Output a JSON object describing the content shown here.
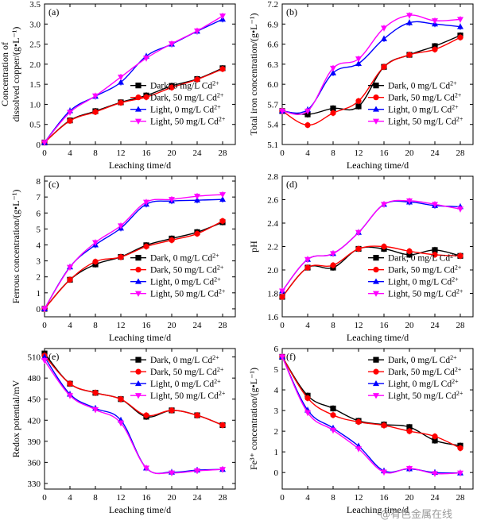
{
  "colors": {
    "dark_0": "#000000",
    "dark_50": "#ff0000",
    "light_0": "#0000ff",
    "light_50": "#ff00ff"
  },
  "watermark": "@有色金属在线",
  "series_styles": [
    {
      "name": "Dark, 0 mg/L Cd",
      "sup": "2+",
      "color": "#000000",
      "marker": "square"
    },
    {
      "name": "Dark, 50 mg/L Cd",
      "sup": "2+",
      "color": "#ff0000",
      "marker": "circle"
    },
    {
      "name": "Light, 0 mg/L Cd",
      "sup": "2+",
      "color": "#0000ff",
      "marker": "triangle-up"
    },
    {
      "name": "Light, 50 mg/L Cd",
      "sup": "2+",
      "color": "#ff00ff",
      "marker": "triangle-down"
    }
  ],
  "chart_data": [
    {
      "panel": "(a)",
      "type": "line",
      "ylabel_lines": [
        "Concentration of",
        "dissolved copper/(g•L⁻¹)"
      ],
      "xlabel": "Leaching time/d",
      "xlim": [
        0,
        30
      ],
      "ylim": [
        0,
        3.5
      ],
      "xticks": [
        0,
        4,
        8,
        12,
        16,
        20,
        24,
        28
      ],
      "yticks": [
        "0",
        "0.5",
        "1.0",
        "1.5",
        "2.0",
        "2.5",
        "3.0",
        "3.5"
      ],
      "x": [
        0,
        4,
        8,
        12,
        16,
        20,
        24,
        28
      ],
      "series": [
        {
          "name": "Dark, 0 mg/L Cd2+",
          "values": [
            0.05,
            0.6,
            0.83,
            1.05,
            1.22,
            1.46,
            1.63,
            1.9
          ]
        },
        {
          "name": "Dark, 50 mg/L Cd2+",
          "values": [
            0.05,
            0.59,
            0.81,
            1.04,
            1.18,
            1.42,
            1.62,
            1.88
          ]
        },
        {
          "name": "Light, 0 mg/L Cd2+",
          "values": [
            0.05,
            0.84,
            1.2,
            1.55,
            2.2,
            2.5,
            2.82,
            3.12
          ]
        },
        {
          "name": "Light, 50 mg/L Cd2+",
          "values": [
            0.05,
            0.8,
            1.21,
            1.68,
            2.15,
            2.51,
            2.83,
            3.2
          ]
        }
      ],
      "legend": "bottom-right"
    },
    {
      "panel": "(b)",
      "type": "line",
      "ylabel_lines": [
        "Total iron concentration/(g•L⁻¹)"
      ],
      "xlabel": "Leaching time/d",
      "xlim": [
        0,
        30
      ],
      "ylim": [
        5.1,
        7.2
      ],
      "xticks": [
        0,
        4,
        8,
        12,
        16,
        20,
        24,
        28
      ],
      "yticks": [
        "5.1",
        "5.4",
        "5.7",
        "6.0",
        "6.3",
        "6.6",
        "6.9",
        "7.2"
      ],
      "x": [
        0,
        4,
        8,
        12,
        16,
        20,
        24,
        28
      ],
      "series": [
        {
          "name": "Dark, 0 mg/L Cd2+",
          "values": [
            5.6,
            5.55,
            5.64,
            5.67,
            6.26,
            6.44,
            6.57,
            6.73
          ]
        },
        {
          "name": "Dark, 50 mg/L Cd2+",
          "values": [
            5.6,
            5.39,
            5.57,
            5.75,
            6.26,
            6.44,
            6.52,
            6.7
          ]
        },
        {
          "name": "Light, 0 mg/L Cd2+",
          "values": [
            5.6,
            5.62,
            6.17,
            6.31,
            6.68,
            6.92,
            6.9,
            6.86
          ]
        },
        {
          "name": "Light, 50 mg/L Cd2+",
          "values": [
            5.6,
            5.6,
            6.24,
            6.38,
            6.84,
            7.03,
            6.95,
            6.97
          ]
        }
      ],
      "legend": "bottom-right"
    },
    {
      "panel": "(c)",
      "type": "line",
      "ylabel_lines": [
        "Ferrous concentration/(g•L⁻¹)"
      ],
      "xlabel": "Leaching time/d",
      "xlim": [
        0,
        30
      ],
      "ylim": [
        -0.5,
        8.3
      ],
      "xticks": [
        0,
        4,
        8,
        12,
        16,
        20,
        24,
        28
      ],
      "yticks": [
        "0",
        "1",
        "2",
        "3",
        "4",
        "5",
        "6",
        "7",
        "8"
      ],
      "x": [
        0,
        4,
        8,
        12,
        16,
        20,
        24,
        28
      ],
      "series": [
        {
          "name": "Dark, 0 mg/L Cd2+",
          "values": [
            0.0,
            1.82,
            2.78,
            3.25,
            3.98,
            4.4,
            4.8,
            5.42
          ]
        },
        {
          "name": "Dark, 50 mg/L Cd2+",
          "values": [
            0.0,
            1.82,
            2.95,
            3.24,
            3.9,
            4.3,
            4.7,
            5.5
          ]
        },
        {
          "name": "Light, 0 mg/L Cd2+",
          "values": [
            0.0,
            2.62,
            4.0,
            5.05,
            6.55,
            6.75,
            6.8,
            6.85
          ]
        },
        {
          "name": "Light, 50 mg/L Cd2+",
          "values": [
            0.0,
            2.6,
            4.15,
            5.2,
            6.68,
            6.85,
            7.05,
            7.15
          ]
        }
      ],
      "legend": "bottom-right"
    },
    {
      "panel": "(d)",
      "type": "line",
      "ylabel_lines": [
        "pH"
      ],
      "xlabel": "Leaching time/d",
      "xlim": [
        0,
        30
      ],
      "ylim": [
        1.6,
        2.8
      ],
      "xticks": [
        0,
        4,
        8,
        12,
        16,
        20,
        24,
        28
      ],
      "yticks": [
        "1.6",
        "1.8",
        "2.0",
        "2.2",
        "2.4",
        "2.6",
        "2.8"
      ],
      "x": [
        0,
        4,
        8,
        12,
        16,
        20,
        24,
        28
      ],
      "series": [
        {
          "name": "Dark, 0 mg/L Cd2+",
          "values": [
            1.77,
            2.02,
            2.02,
            2.18,
            2.18,
            2.13,
            2.17,
            2.12
          ]
        },
        {
          "name": "Dark, 50 mg/L Cd2+",
          "values": [
            1.77,
            2.02,
            2.04,
            2.18,
            2.2,
            2.16,
            2.13,
            2.12
          ]
        },
        {
          "name": "Light, 0 mg/L Cd2+",
          "values": [
            1.82,
            2.09,
            2.14,
            2.32,
            2.56,
            2.58,
            2.55,
            2.54
          ]
        },
        {
          "name": "Light, 50 mg/L Cd2+",
          "values": [
            1.82,
            2.09,
            2.14,
            2.32,
            2.56,
            2.59,
            2.56,
            2.52
          ]
        }
      ],
      "legend": "bottom-right"
    },
    {
      "panel": "(e)",
      "type": "line",
      "ylabel_lines": [
        "Redox potential/mV"
      ],
      "xlabel": "Leaching time/d",
      "xlim": [
        0,
        30
      ],
      "ylim": [
        322,
        522
      ],
      "xticks": [
        0,
        4,
        8,
        12,
        16,
        20,
        24,
        28
      ],
      "yticks": [
        "330",
        "360",
        "390",
        "420",
        "450",
        "480",
        "510"
      ],
      "x": [
        0,
        4,
        8,
        12,
        16,
        20,
        24,
        28
      ],
      "series": [
        {
          "name": "Dark, 0 mg/L Cd2+",
          "values": [
            515,
            472,
            459,
            450,
            425,
            434,
            427,
            413
          ]
        },
        {
          "name": "Dark, 50 mg/L Cd2+",
          "values": [
            512,
            472,
            459,
            450,
            427,
            434,
            427,
            413
          ]
        },
        {
          "name": "Light, 0 mg/L Cd2+",
          "values": [
            510,
            457,
            437,
            420,
            352,
            346,
            349,
            350
          ]
        },
        {
          "name": "Light, 50 mg/L Cd2+",
          "values": [
            505,
            455,
            435,
            416,
            352,
            345,
            348,
            350
          ]
        }
      ],
      "legend": "top-right"
    },
    {
      "panel": "(f)",
      "type": "line",
      "ylabel_lines": [
        "Fe³⁺ concentration/(g•L⁻¹)"
      ],
      "xlabel": "Leaching time/d",
      "xlim": [
        0,
        30
      ],
      "ylim": [
        -0.8,
        6
      ],
      "xticks": [
        0,
        4,
        8,
        12,
        16,
        20,
        24,
        28
      ],
      "yticks": [
        "0",
        "1",
        "2",
        "3",
        "4",
        "5",
        "6"
      ],
      "x": [
        0,
        4,
        8,
        12,
        16,
        20,
        24,
        28
      ],
      "series": [
        {
          "name": "Dark, 0 mg/L Cd2+",
          "values": [
            5.6,
            3.72,
            3.1,
            2.5,
            2.32,
            2.2,
            1.55,
            1.3
          ]
        },
        {
          "name": "Dark, 50 mg/L Cd2+",
          "values": [
            5.6,
            3.6,
            2.78,
            2.45,
            2.28,
            2.0,
            1.75,
            1.18
          ]
        },
        {
          "name": "Light, 0 mg/L Cd2+",
          "values": [
            5.6,
            3.02,
            2.15,
            1.28,
            0.08,
            0.18,
            0.0,
            -0.02
          ]
        },
        {
          "name": "Light, 50 mg/L Cd2+",
          "values": [
            5.6,
            2.9,
            2.05,
            1.15,
            0.02,
            0.2,
            -0.05,
            -0.02
          ]
        }
      ],
      "legend": "top-right"
    }
  ]
}
